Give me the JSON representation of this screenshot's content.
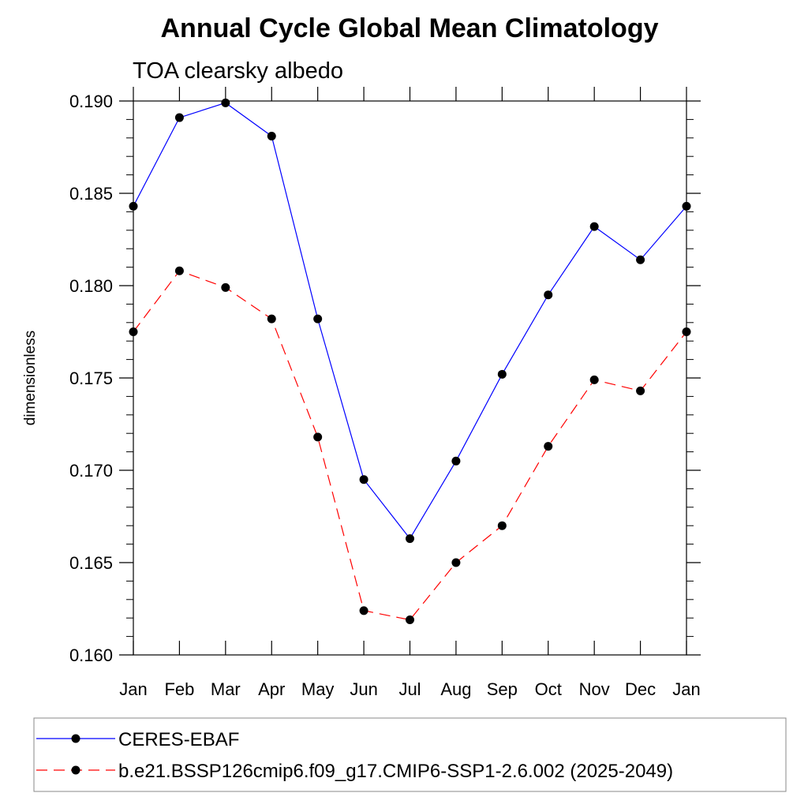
{
  "colors": {
    "ceres": "#0000ff",
    "model": "#ff0000",
    "axis": "#000000",
    "marker": "#000000",
    "legend_border": "#888888"
  },
  "chart_data": {
    "type": "line",
    "title": "Annual Cycle Global Mean Climatology",
    "subtitle": "TOA clearsky albedo",
    "xlabel": "",
    "ylabel": "dimensionless",
    "categories": [
      "Jan",
      "Feb",
      "Mar",
      "Apr",
      "May",
      "Jun",
      "Jul",
      "Aug",
      "Sep",
      "Oct",
      "Nov",
      "Dec",
      "Jan"
    ],
    "ylim": [
      0.16,
      0.19
    ],
    "yticks": [
      "0.160",
      "0.165",
      "0.170",
      "0.175",
      "0.180",
      "0.185",
      "0.190"
    ],
    "legend_position": "bottom",
    "series": [
      {
        "name": "CERES-EBAF",
        "style": "solid",
        "color": "#0000ff",
        "values": [
          0.1843,
          0.1891,
          0.1899,
          0.1881,
          0.1782,
          0.1695,
          0.1663,
          0.1705,
          0.1752,
          0.1795,
          0.1832,
          0.1814,
          0.1843
        ]
      },
      {
        "name": "b.e21.BSSP126cmip6.f09_g17.CMIP6-SSP1-2.6.002 (2025-2049)",
        "style": "dashed",
        "color": "#ff0000",
        "values": [
          0.1775,
          0.1808,
          0.1799,
          0.1782,
          0.1718,
          0.1624,
          0.1619,
          0.165,
          0.167,
          0.1713,
          0.1749,
          0.1743,
          0.1775
        ]
      }
    ]
  }
}
